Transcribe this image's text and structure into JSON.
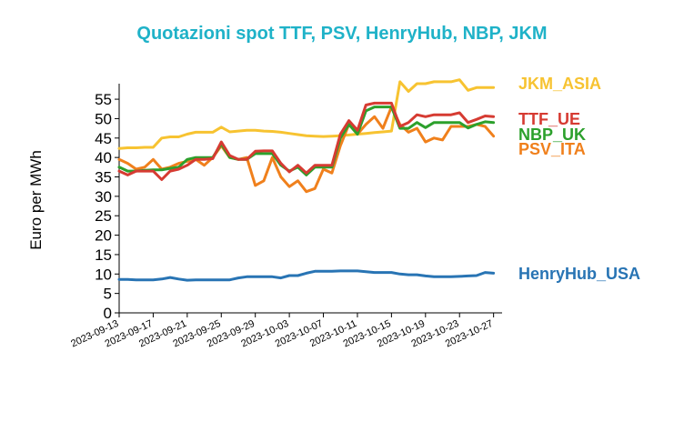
{
  "title": "Quotazioni spot TTF, PSV, HenryHub, NBP, JKM",
  "colors": {
    "title": "#1FB2C8",
    "JKM_ASIA": "#F7C331",
    "TTF_UE": "#D63B32",
    "NBP_UK": "#2CA02C",
    "PSV_ITA": "#F0801C",
    "HenryHub_USA": "#2874B4"
  },
  "chart_data": {
    "type": "line",
    "title": "Quotazioni spot TTF, PSV, HenryHub, NBP, JKM",
    "xlabel": "",
    "ylabel": "Euro per MWh",
    "ylim": [
      0,
      59
    ],
    "yticks": [
      0,
      5,
      10,
      15,
      20,
      25,
      30,
      35,
      40,
      45,
      50,
      55
    ],
    "xlim": [
      "2023-09-13",
      "2023-10-28"
    ],
    "xticks": [
      "2023-09-13",
      "2023-09-17",
      "2023-09-21",
      "2023-09-25",
      "2023-09-29",
      "2023-10-03",
      "2023-10-07",
      "2023-10-11",
      "2023-10-15",
      "2023-10-19",
      "2023-10-23",
      "2023-10-27"
    ],
    "grid": false,
    "legend": "right, inline labels at line ends",
    "series": [
      {
        "name": "JKM_ASIA",
        "points": [
          [
            "2023-09-13",
            42.3
          ],
          [
            "2023-09-14",
            42.5
          ],
          [
            "2023-09-15",
            42.5
          ],
          [
            "2023-09-16",
            42.6
          ],
          [
            "2023-09-17",
            42.6
          ],
          [
            "2023-09-18",
            45.0
          ],
          [
            "2023-09-19",
            45.3
          ],
          [
            "2023-09-20",
            45.3
          ],
          [
            "2023-09-21",
            46.0
          ],
          [
            "2023-09-22",
            46.5
          ],
          [
            "2023-09-23",
            46.5
          ],
          [
            "2023-09-24",
            46.5
          ],
          [
            "2023-09-25",
            47.8
          ],
          [
            "2023-09-26",
            46.6
          ],
          [
            "2023-09-27",
            46.8
          ],
          [
            "2023-09-28",
            47.0
          ],
          [
            "2023-09-29",
            47.0
          ],
          [
            "2023-09-30",
            46.8
          ],
          [
            "2023-10-01",
            46.7
          ],
          [
            "2023-10-02",
            46.5
          ],
          [
            "2023-10-03",
            46.2
          ],
          [
            "2023-10-04",
            45.9
          ],
          [
            "2023-10-05",
            45.6
          ],
          [
            "2023-10-06",
            45.5
          ],
          [
            "2023-10-07",
            45.4
          ],
          [
            "2023-10-08",
            45.5
          ],
          [
            "2023-10-09",
            45.6
          ],
          [
            "2023-10-10",
            45.8
          ],
          [
            "2023-10-11",
            46.0
          ],
          [
            "2023-10-12",
            46.2
          ],
          [
            "2023-10-13",
            46.4
          ],
          [
            "2023-10-14",
            46.6
          ],
          [
            "2023-10-15",
            46.8
          ],
          [
            "2023-10-16",
            59.5
          ],
          [
            "2023-10-17",
            57.0
          ],
          [
            "2023-10-18",
            59.0
          ],
          [
            "2023-10-19",
            59.0
          ],
          [
            "2023-10-20",
            59.5
          ],
          [
            "2023-10-21",
            59.5
          ],
          [
            "2023-10-22",
            59.5
          ],
          [
            "2023-10-23",
            60.0
          ],
          [
            "2023-10-24",
            57.3
          ],
          [
            "2023-10-25",
            58.0
          ],
          [
            "2023-10-26",
            58.0
          ],
          [
            "2023-10-27",
            58.0
          ]
        ]
      },
      {
        "name": "TTF_UE",
        "points": [
          [
            "2023-09-13",
            36.5
          ],
          [
            "2023-09-14",
            35.5
          ],
          [
            "2023-09-15",
            36.5
          ],
          [
            "2023-09-16",
            36.5
          ],
          [
            "2023-09-17",
            36.5
          ],
          [
            "2023-09-18",
            34.3
          ],
          [
            "2023-09-19",
            36.5
          ],
          [
            "2023-09-20",
            37.0
          ],
          [
            "2023-09-21",
            38.0
          ],
          [
            "2023-09-22",
            39.5
          ],
          [
            "2023-09-23",
            39.5
          ],
          [
            "2023-09-24",
            39.7
          ],
          [
            "2023-09-25",
            44.0
          ],
          [
            "2023-09-26",
            40.5
          ],
          [
            "2023-09-27",
            39.5
          ],
          [
            "2023-09-28",
            39.5
          ],
          [
            "2023-09-29",
            41.6
          ],
          [
            "2023-09-30",
            41.7
          ],
          [
            "2023-10-01",
            41.7
          ],
          [
            "2023-10-02",
            38.5
          ],
          [
            "2023-10-03",
            36.3
          ],
          [
            "2023-10-04",
            38.0
          ],
          [
            "2023-10-05",
            36.0
          ],
          [
            "2023-10-06",
            38.0
          ],
          [
            "2023-10-07",
            38.0
          ],
          [
            "2023-10-08",
            38.0
          ],
          [
            "2023-10-09",
            46.0
          ],
          [
            "2023-10-10",
            49.5
          ],
          [
            "2023-10-11",
            47.0
          ],
          [
            "2023-10-12",
            53.5
          ],
          [
            "2023-10-13",
            54.0
          ],
          [
            "2023-10-14",
            54.0
          ],
          [
            "2023-10-15",
            54.0
          ],
          [
            "2023-10-16",
            48.0
          ],
          [
            "2023-10-17",
            49.0
          ],
          [
            "2023-10-18",
            51.0
          ],
          [
            "2023-10-19",
            50.5
          ],
          [
            "2023-10-20",
            51.0
          ],
          [
            "2023-10-21",
            51.0
          ],
          [
            "2023-10-22",
            51.0
          ],
          [
            "2023-10-23",
            51.5
          ],
          [
            "2023-10-24",
            49.0
          ],
          [
            "2023-10-25",
            49.8
          ],
          [
            "2023-10-26",
            50.7
          ],
          [
            "2023-10-27",
            50.5
          ]
        ]
      },
      {
        "name": "NBP_UK",
        "points": [
          [
            "2023-09-13",
            37.5
          ],
          [
            "2023-09-14",
            36.5
          ],
          [
            "2023-09-15",
            36.5
          ],
          [
            "2023-09-16",
            36.7
          ],
          [
            "2023-09-17",
            36.8
          ],
          [
            "2023-09-18",
            36.8
          ],
          [
            "2023-09-19",
            37.2
          ],
          [
            "2023-09-20",
            37.5
          ],
          [
            "2023-09-21",
            39.5
          ],
          [
            "2023-09-22",
            40.0
          ],
          [
            "2023-09-23",
            40.0
          ],
          [
            "2023-09-24",
            40.0
          ],
          [
            "2023-09-25",
            43.5
          ],
          [
            "2023-09-26",
            40.0
          ],
          [
            "2023-09-27",
            39.5
          ],
          [
            "2023-09-28",
            39.5
          ],
          [
            "2023-09-29",
            41.0
          ],
          [
            "2023-09-30",
            41.0
          ],
          [
            "2023-10-01",
            41.0
          ],
          [
            "2023-10-02",
            38.0
          ],
          [
            "2023-10-03",
            36.5
          ],
          [
            "2023-10-04",
            37.5
          ],
          [
            "2023-10-05",
            35.5
          ],
          [
            "2023-10-06",
            37.5
          ],
          [
            "2023-10-07",
            37.5
          ],
          [
            "2023-10-08",
            37.5
          ],
          [
            "2023-10-09",
            45.0
          ],
          [
            "2023-10-10",
            48.5
          ],
          [
            "2023-10-11",
            46.0
          ],
          [
            "2023-10-12",
            52.0
          ],
          [
            "2023-10-13",
            53.0
          ],
          [
            "2023-10-14",
            53.0
          ],
          [
            "2023-10-15",
            53.0
          ],
          [
            "2023-10-16",
            47.5
          ],
          [
            "2023-10-17",
            47.5
          ],
          [
            "2023-10-18",
            49.0
          ],
          [
            "2023-10-19",
            47.7
          ],
          [
            "2023-10-20",
            49.0
          ],
          [
            "2023-10-21",
            49.0
          ],
          [
            "2023-10-22",
            49.0
          ],
          [
            "2023-10-23",
            49.0
          ],
          [
            "2023-10-24",
            47.6
          ],
          [
            "2023-10-25",
            48.5
          ],
          [
            "2023-10-26",
            49.2
          ],
          [
            "2023-10-27",
            49.0
          ]
        ]
      },
      {
        "name": "PSV_ITA",
        "points": [
          [
            "2023-09-13",
            39.5
          ],
          [
            "2023-09-14",
            38.5
          ],
          [
            "2023-09-15",
            37.0
          ],
          [
            "2023-09-16",
            37.5
          ],
          [
            "2023-09-17",
            39.5
          ],
          [
            "2023-09-18",
            37.0
          ],
          [
            "2023-09-19",
            37.5
          ],
          [
            "2023-09-20",
            38.5
          ],
          [
            "2023-09-21",
            39.0
          ],
          [
            "2023-09-22",
            39.5
          ],
          [
            "2023-09-23",
            38.0
          ],
          [
            "2023-09-24",
            40.0
          ],
          [
            "2023-09-25",
            43.0
          ],
          [
            "2023-09-26",
            40.0
          ],
          [
            "2023-09-27",
            39.5
          ],
          [
            "2023-09-28",
            40.0
          ],
          [
            "2023-09-29",
            32.8
          ],
          [
            "2023-09-30",
            34.0
          ],
          [
            "2023-10-01",
            40.0
          ],
          [
            "2023-10-02",
            35.0
          ],
          [
            "2023-10-03",
            32.5
          ],
          [
            "2023-10-04",
            34.0
          ],
          [
            "2023-10-05",
            31.2
          ],
          [
            "2023-10-06",
            32.0
          ],
          [
            "2023-10-07",
            37.0
          ],
          [
            "2023-10-08",
            36.0
          ],
          [
            "2023-10-09",
            43.0
          ],
          [
            "2023-10-10",
            48.5
          ],
          [
            "2023-10-11",
            46.0
          ],
          [
            "2023-10-12",
            48.5
          ],
          [
            "2023-10-13",
            50.5
          ],
          [
            "2023-10-14",
            47.5
          ],
          [
            "2023-10-15",
            53.0
          ],
          [
            "2023-10-16",
            48.5
          ],
          [
            "2023-10-17",
            46.5
          ],
          [
            "2023-10-18",
            47.5
          ],
          [
            "2023-10-19",
            44.0
          ],
          [
            "2023-10-20",
            45.0
          ],
          [
            "2023-10-21",
            44.5
          ],
          [
            "2023-10-22",
            48.0
          ],
          [
            "2023-10-23",
            48.0
          ],
          [
            "2023-10-24",
            48.0
          ],
          [
            "2023-10-25",
            48.5
          ],
          [
            "2023-10-26",
            48.0
          ],
          [
            "2023-10-27",
            45.5
          ]
        ]
      },
      {
        "name": "HenryHub_USA",
        "points": [
          [
            "2023-09-13",
            8.6
          ],
          [
            "2023-09-14",
            8.6
          ],
          [
            "2023-09-15",
            8.5
          ],
          [
            "2023-09-16",
            8.5
          ],
          [
            "2023-09-17",
            8.5
          ],
          [
            "2023-09-18",
            8.7
          ],
          [
            "2023-09-19",
            9.1
          ],
          [
            "2023-09-20",
            8.7
          ],
          [
            "2023-09-21",
            8.4
          ],
          [
            "2023-09-22",
            8.5
          ],
          [
            "2023-09-23",
            8.5
          ],
          [
            "2023-09-24",
            8.5
          ],
          [
            "2023-09-25",
            8.5
          ],
          [
            "2023-09-26",
            8.5
          ],
          [
            "2023-09-27",
            9.0
          ],
          [
            "2023-09-28",
            9.3
          ],
          [
            "2023-09-29",
            9.3
          ],
          [
            "2023-09-30",
            9.3
          ],
          [
            "2023-10-01",
            9.3
          ],
          [
            "2023-10-02",
            9.0
          ],
          [
            "2023-10-03",
            9.6
          ],
          [
            "2023-10-04",
            9.6
          ],
          [
            "2023-10-05",
            10.2
          ],
          [
            "2023-10-06",
            10.7
          ],
          [
            "2023-10-07",
            10.7
          ],
          [
            "2023-10-08",
            10.7
          ],
          [
            "2023-10-09",
            10.8
          ],
          [
            "2023-10-10",
            10.8
          ],
          [
            "2023-10-11",
            10.8
          ],
          [
            "2023-10-12",
            10.6
          ],
          [
            "2023-10-13",
            10.4
          ],
          [
            "2023-10-14",
            10.4
          ],
          [
            "2023-10-15",
            10.4
          ],
          [
            "2023-10-16",
            10.0
          ],
          [
            "2023-10-17",
            9.8
          ],
          [
            "2023-10-18",
            9.8
          ],
          [
            "2023-10-19",
            9.5
          ],
          [
            "2023-10-20",
            9.3
          ],
          [
            "2023-10-21",
            9.3
          ],
          [
            "2023-10-22",
            9.3
          ],
          [
            "2023-10-23",
            9.4
          ],
          [
            "2023-10-24",
            9.5
          ],
          [
            "2023-10-25",
            9.6
          ],
          [
            "2023-10-26",
            10.4
          ],
          [
            "2023-10-27",
            10.2
          ]
        ]
      }
    ]
  }
}
